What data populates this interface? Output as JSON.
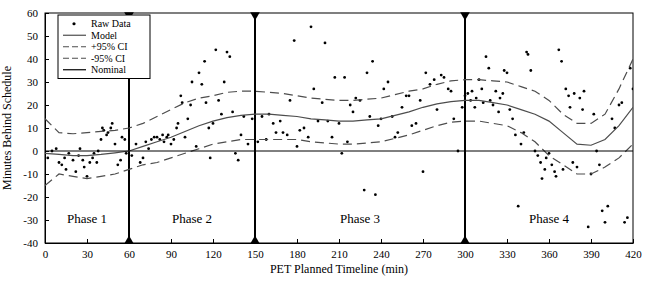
{
  "chart_data": {
    "type": "line",
    "xlabel": "PET Planned Timeline (min)",
    "ylabel": "Minutes Behind Schedule",
    "xlim": [
      0,
      420
    ],
    "ylim": [
      -40,
      60
    ],
    "xticks": [
      0,
      30,
      60,
      90,
      120,
      150,
      180,
      210,
      240,
      270,
      300,
      330,
      360,
      390,
      420
    ],
    "yticks": [
      -40,
      -30,
      -20,
      -10,
      0,
      10,
      20,
      30,
      40,
      50,
      60
    ],
    "grid": false,
    "legend": "upper left",
    "phases": [
      {
        "label": "Phase 1",
        "start": 0,
        "end": 60
      },
      {
        "label": "Phase 2",
        "start": 60,
        "end": 150
      },
      {
        "label": "Phase 3",
        "start": 150,
        "end": 300
      },
      {
        "label": "Phase 4",
        "start": 300,
        "end": 420
      }
    ],
    "series": [
      {
        "name": "Raw Data",
        "type": "scatter",
        "marker": "dot",
        "color": "#000000",
        "x": [
          2,
          5,
          8,
          10,
          12,
          14,
          15,
          17,
          20,
          22,
          24,
          25,
          27,
          28,
          30,
          32,
          34,
          35,
          37,
          38,
          40,
          41,
          42,
          44,
          45,
          47,
          48,
          50,
          52,
          54,
          55,
          57,
          58,
          62,
          65,
          68,
          70,
          72,
          74,
          76,
          78,
          80,
          82,
          84,
          85,
          87,
          88,
          90,
          92,
          94,
          95,
          97,
          98,
          100,
          102,
          104,
          105,
          108,
          110,
          112,
          114,
          115,
          117,
          118,
          120,
          122,
          124,
          126,
          128,
          130,
          132,
          134,
          136,
          138,
          140,
          142,
          145,
          148,
          152,
          155,
          158,
          160,
          163,
          165,
          168,
          170,
          173,
          175,
          178,
          180,
          182,
          185,
          188,
          190,
          192,
          195,
          198,
          200,
          202,
          205,
          207,
          210,
          212,
          214,
          216,
          218,
          220,
          222,
          225,
          228,
          230,
          232,
          234,
          236,
          238,
          240,
          242,
          245,
          248,
          250,
          252,
          255,
          258,
          260,
          262,
          265,
          268,
          270,
          272,
          275,
          278,
          280,
          283,
          285,
          288,
          290,
          292,
          295,
          298,
          300,
          302,
          304,
          305,
          307,
          308,
          310,
          312,
          313,
          315,
          317,
          318,
          320,
          322,
          324,
          325,
          327,
          328,
          330,
          332,
          334,
          336,
          338,
          340,
          342,
          344,
          345,
          347,
          350,
          352,
          354,
          355,
          357,
          358,
          360,
          362,
          364,
          365,
          367,
          369,
          370,
          372,
          374,
          375,
          377,
          378,
          380,
          382,
          384,
          385,
          388,
          390,
          392,
          394,
          396,
          398,
          400,
          402,
          405,
          407,
          410,
          412,
          414,
          416,
          418,
          420
        ],
        "values": [
          -3,
          0,
          1,
          -5,
          -6,
          -3,
          -8,
          -1,
          -4,
          -9,
          -2,
          1,
          -4,
          -7,
          -11,
          -5,
          -3,
          -1,
          -5,
          0,
          5,
          10,
          9,
          7,
          8,
          10,
          12,
          3,
          -6,
          -4,
          6,
          5,
          -1,
          -2,
          3,
          -5,
          -3,
          4,
          1,
          5,
          6,
          6,
          5,
          7,
          4,
          6,
          7,
          3,
          5,
          10,
          12,
          24,
          21,
          6,
          14,
          20,
          30,
          2,
          34,
          29,
          39,
          21,
          10,
          -3,
          12,
          44,
          22,
          16,
          30,
          43,
          41,
          17,
          -1,
          -4,
          7,
          15,
          3,
          14,
          4,
          15,
          5,
          16,
          12,
          8,
          13,
          8,
          7,
          22,
          48,
          2,
          9,
          10,
          6,
          54,
          27,
          13,
          21,
          47,
          13,
          6,
          32,
          12,
          -1,
          32,
          4,
          20,
          17,
          23,
          22,
          -17,
          34,
          15,
          39,
          -19,
          11,
          14,
          27,
          30,
          15,
          6,
          8,
          19,
          24,
          24,
          11,
          12,
          22,
          -9,
          34,
          29,
          31,
          18,
          33,
          32,
          27,
          26,
          14,
          0,
          19,
          24,
          25,
          22,
          26,
          19,
          23,
          31,
          27,
          21,
          41,
          36,
          22,
          20,
          26,
          17,
          23,
          25,
          35,
          34,
          18,
          14,
          7,
          -24,
          3,
          8,
          43,
          42,
          35,
          0,
          -2,
          -5,
          -12,
          -8,
          -3,
          -1,
          -6,
          -9,
          -11,
          44,
          39,
          -8,
          27,
          24,
          19,
          -5,
          25,
          -7,
          23,
          18,
          26,
          -33,
          -10,
          16,
          0,
          -6,
          -26,
          -31,
          -24,
          14,
          10,
          20,
          21,
          -31,
          -29,
          36,
          27
        ]
      },
      {
        "name": "Model",
        "type": "line",
        "line_style": "solid",
        "color": "#4d4d4d",
        "x": [
          0,
          10,
          20,
          30,
          40,
          50,
          60,
          70,
          80,
          90,
          100,
          110,
          120,
          130,
          140,
          150,
          160,
          170,
          180,
          190,
          200,
          210,
          220,
          230,
          240,
          250,
          260,
          270,
          280,
          290,
          300,
          310,
          320,
          330,
          340,
          350,
          360,
          370,
          380,
          390,
          400,
          410,
          420
        ],
        "values": [
          -1,
          -1.5,
          -2,
          -2,
          -1.5,
          -0.8,
          0,
          2,
          4,
          6,
          8.5,
          11,
          13,
          14.5,
          15.5,
          16,
          16,
          15.5,
          15,
          14,
          13.5,
          13,
          13,
          13.5,
          14,
          15.5,
          17,
          19,
          20.5,
          21.5,
          22,
          22,
          21,
          20,
          18,
          16,
          13,
          8,
          3,
          2.5,
          5,
          11,
          19
        ]
      },
      {
        "name": "+95% CI",
        "type": "line",
        "line_style": "dashed",
        "color": "#4d4d4d",
        "x": [
          0,
          10,
          20,
          30,
          40,
          50,
          60,
          70,
          80,
          90,
          100,
          110,
          120,
          130,
          140,
          150,
          160,
          170,
          180,
          190,
          200,
          210,
          220,
          230,
          240,
          250,
          260,
          270,
          280,
          290,
          300,
          310,
          320,
          330,
          340,
          350,
          360,
          370,
          380,
          390,
          400,
          410,
          420
        ],
        "values": [
          14,
          8,
          7.5,
          8,
          8.5,
          9,
          10,
          12,
          15,
          18,
          21,
          23,
          24,
          25.5,
          26,
          26,
          25.5,
          25,
          24,
          23,
          22.5,
          22,
          22,
          22.5,
          23,
          24.5,
          26,
          27,
          29,
          30.5,
          31,
          31,
          30.5,
          30,
          28,
          26,
          22,
          16,
          12,
          12,
          16,
          27,
          40
        ]
      },
      {
        "name": "-95% CI",
        "type": "line",
        "line_style": "dashed",
        "color": "#4d4d4d",
        "x": [
          0,
          10,
          20,
          30,
          40,
          50,
          60,
          70,
          80,
          90,
          100,
          110,
          120,
          130,
          140,
          150,
          160,
          170,
          180,
          190,
          200,
          210,
          220,
          230,
          240,
          250,
          260,
          270,
          280,
          290,
          300,
          310,
          320,
          330,
          340,
          350,
          360,
          370,
          380,
          390,
          400,
          410,
          420
        ],
        "values": [
          -15,
          -10,
          -11,
          -12,
          -11,
          -10,
          -8,
          -6,
          -5,
          -3,
          -1,
          1,
          3,
          4,
          5,
          5,
          5,
          5,
          5,
          4,
          3.5,
          3,
          3,
          3.5,
          4,
          5.5,
          7,
          9,
          11,
          12.5,
          13,
          13,
          12,
          11,
          8,
          4,
          -2,
          -6,
          -10,
          -10,
          -7,
          -3,
          3
        ]
      },
      {
        "name": "Nominal",
        "type": "line",
        "line_style": "solid",
        "color": "#000000",
        "x": [
          0,
          420
        ],
        "values": [
          0,
          0
        ]
      }
    ]
  }
}
